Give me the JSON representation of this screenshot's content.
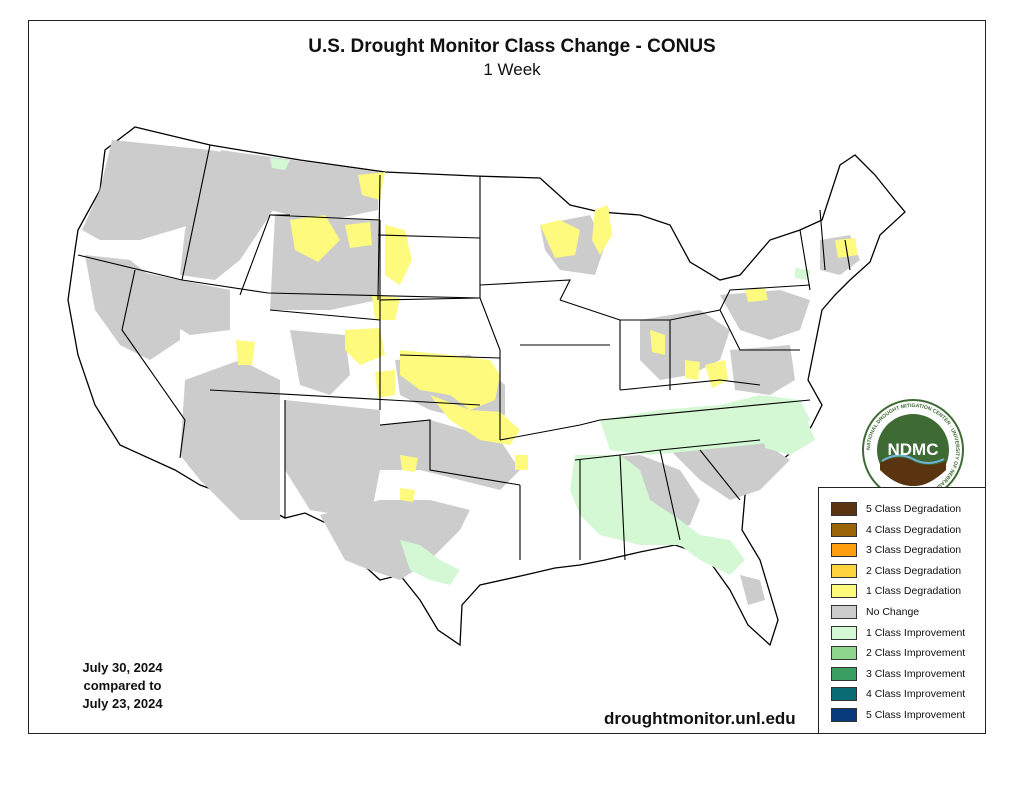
{
  "map": {
    "title": "U.S. Drought Monitor Class Change - CONUS",
    "subtitle": "1 Week",
    "date_line1": "July 30, 2024",
    "date_line2": "compared to",
    "date_line3": "July 23, 2024",
    "website": "droughtmonitor.unl.edu"
  },
  "logo": {
    "text": "NDMC",
    "ring_text": "NATIONAL DROUGHT MITIGATION CENTER · UNIVERSITY OF NEBRASKA",
    "color_primary": "#3e6b34",
    "color_ring": "#ffffff"
  },
  "legend": {
    "items": [
      {
        "label": "5 Class Degradation",
        "color": "#5a3310"
      },
      {
        "label": "4 Class Degradation",
        "color": "#9b6406"
      },
      {
        "label": "3 Class Degradation",
        "color": "#ff9e0f"
      },
      {
        "label": "2 Class Degradation",
        "color": "#ffd43d"
      },
      {
        "label": "1 Class Degradation",
        "color": "#fdfa7e"
      },
      {
        "label": "No Change",
        "color": "#cccccc"
      },
      {
        "label": "1 Class Improvement",
        "color": "#d3f8d3"
      },
      {
        "label": "2 Class Improvement",
        "color": "#8fd68f"
      },
      {
        "label": "3 Class Improvement",
        "color": "#3a9e63"
      },
      {
        "label": "4 Class Improvement",
        "color": "#0b6b75"
      },
      {
        "label": "5 Class Improvement",
        "color": "#083b7b"
      }
    ]
  },
  "colors": {
    "no_change": "#cccccc",
    "degradation_1": "#fdfa7e",
    "improvement_1": "#d3f8d3",
    "boundary": "#000000",
    "land": "#ffffff"
  }
}
